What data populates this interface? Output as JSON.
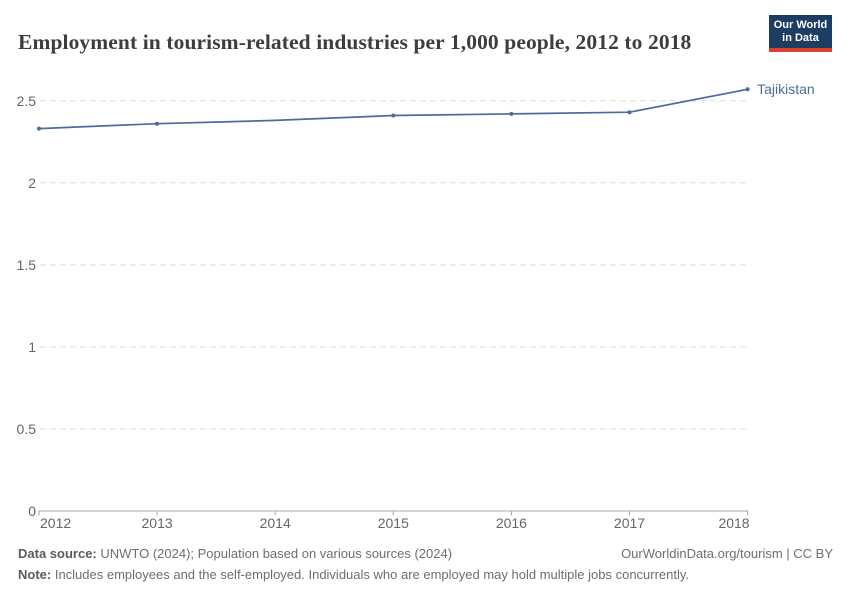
{
  "header": {
    "title": "Employment in tourism-related industries per 1,000 people, 2012 to 2018",
    "logo": {
      "line1": "Our World",
      "line2": "in Data"
    }
  },
  "chart_data": {
    "type": "line",
    "title": "Employment in tourism-related industries per 1,000 people, 2012 to 2018",
    "x": [
      2012,
      2013,
      2014,
      2015,
      2016,
      2017,
      2018
    ],
    "series": [
      {
        "name": "Tajikistan",
        "color": "#4C6A9C",
        "values": [
          2.33,
          2.36,
          2.38,
          2.41,
          2.42,
          2.43,
          2.57
        ],
        "marker_years": [
          2012,
          2013,
          2015,
          2016,
          2017,
          2018
        ]
      }
    ],
    "xlabel": "",
    "ylabel": "",
    "ylim": [
      0,
      2.5
    ],
    "yticks": [
      0,
      0.5,
      1,
      1.5,
      2,
      2.5
    ],
    "ytick_labels": [
      "0",
      "0.5",
      "1",
      "1.5",
      "2",
      "2.5"
    ],
    "xtick_labels": [
      "2012",
      "2013",
      "2014",
      "2015",
      "2016",
      "2017",
      "2018"
    ],
    "grid": "horizontal-dashed",
    "legend_position": "line-end-label",
    "entity_label": "Tajikistan"
  },
  "footer": {
    "source_label": "Data source:",
    "source_text": " UNWTO (2024); Population based on various sources (2024)",
    "attribution": "OurWorldinData.org/tourism | CC BY",
    "note_label": "Note:",
    "note_text": " Includes employees and the self-employed. Individuals who are employed may hold multiple jobs concurrently."
  },
  "colors": {
    "line": "#4C6A9C",
    "grid": "#dddddd",
    "axis": "#a5a5a5",
    "tick_text": "#666666",
    "title_text": "#3d3d3d",
    "footer_text": "#6e6e6e",
    "logo_navy": "#1d3d63",
    "logo_red": "#dc3e32"
  }
}
